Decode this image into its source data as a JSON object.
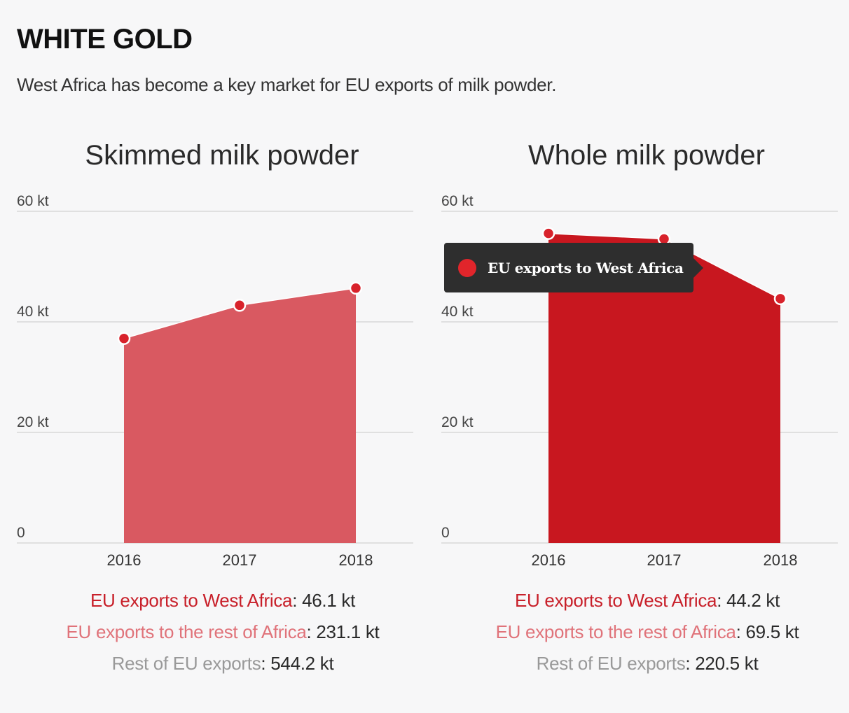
{
  "header": {
    "title": "WHITE GOLD",
    "subtitle": "West Africa has become a key market for EU exports of milk powder."
  },
  "colors": {
    "skimmed_fill": "#d95961",
    "whole_fill": "#c8171f",
    "point": "#d8222b",
    "grid": "#c9c9c9",
    "tooltip_bg": "#2e2e2e"
  },
  "chart_data": [
    {
      "type": "area",
      "title": "Skimmed milk powder",
      "x": [
        "2016",
        "2017",
        "2018"
      ],
      "series": [
        {
          "name": "EU exports to West Africa",
          "values": [
            37,
            43,
            46.1
          ]
        }
      ],
      "yticks": [
        "0",
        "20 kt",
        "40 kt",
        "60 kt"
      ],
      "ylim": [
        0,
        60
      ],
      "grid": true,
      "summary": [
        {
          "label": "EU exports to West Africa",
          "value": "46.1 kt"
        },
        {
          "label": "EU exports to the rest of Africa",
          "value": "231.1 kt"
        },
        {
          "label": "Rest of EU exports",
          "value": "544.2 kt"
        }
      ]
    },
    {
      "type": "area",
      "title": "Whole milk powder",
      "x": [
        "2016",
        "2017",
        "2018"
      ],
      "series": [
        {
          "name": "EU exports to West Africa",
          "values": [
            56,
            55,
            44.2
          ]
        }
      ],
      "yticks": [
        "0",
        "20 kt",
        "40 kt",
        "60 kt"
      ],
      "ylim": [
        0,
        60
      ],
      "grid": true,
      "summary": [
        {
          "label": "EU exports to West Africa",
          "value": "44.2 kt"
        },
        {
          "label": "EU exports to the rest of Africa",
          "value": "69.5 kt"
        },
        {
          "label": "Rest of EU exports",
          "value": "220.5 kt"
        }
      ],
      "tooltip": {
        "label": "EU exports to West Africa"
      }
    }
  ]
}
